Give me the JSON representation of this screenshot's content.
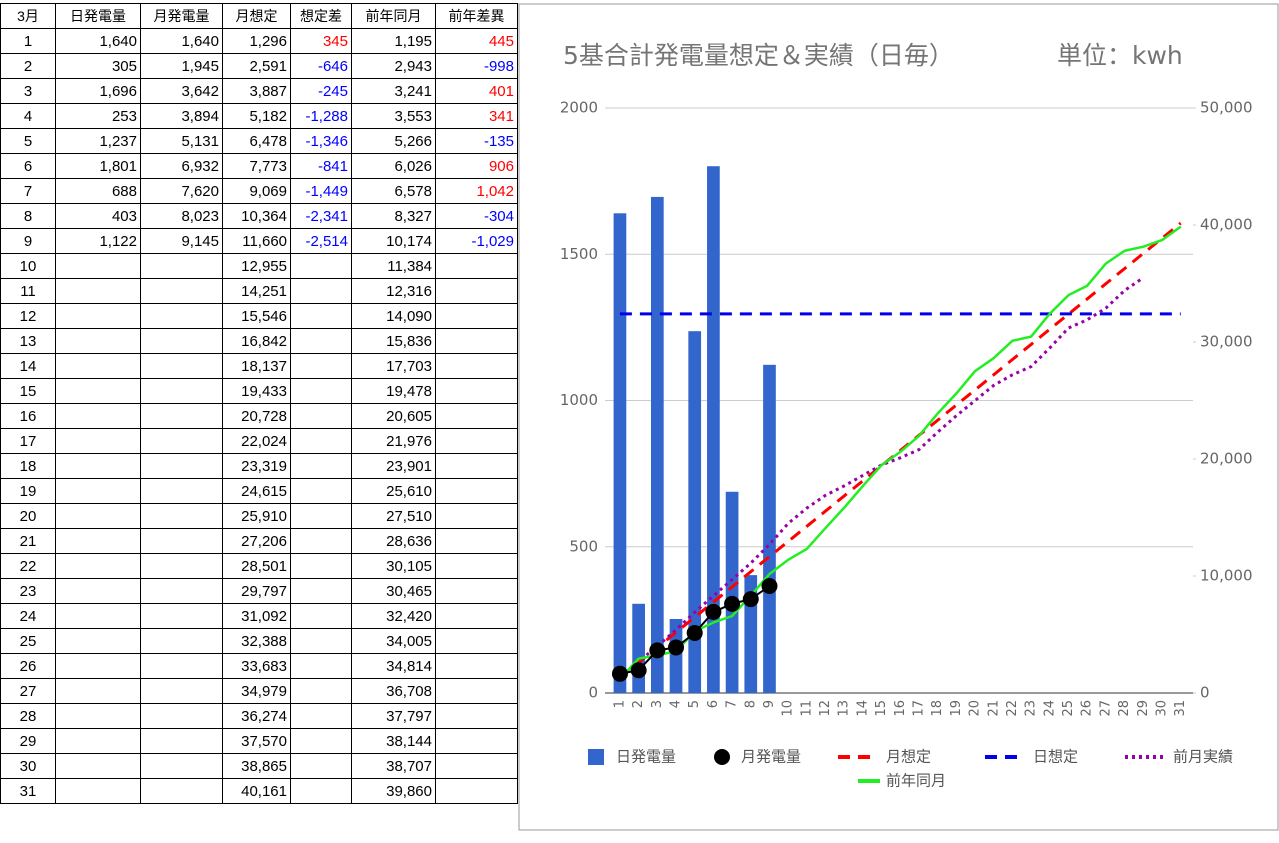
{
  "table": {
    "header": [
      "3月",
      "日発電量",
      "月発電量",
      "月想定",
      "想定差",
      "前年同月",
      "前年差異"
    ],
    "rows": [
      [
        "1",
        "1,640",
        "1,640",
        "1,296",
        "345",
        "1,195",
        "445"
      ],
      [
        "2",
        "305",
        "1,945",
        "2,591",
        "-646",
        "2,943",
        "-998"
      ],
      [
        "3",
        "1,696",
        "3,642",
        "3,887",
        "-245",
        "3,241",
        "401"
      ],
      [
        "4",
        "253",
        "3,894",
        "5,182",
        "-1,288",
        "3,553",
        "341"
      ],
      [
        "5",
        "1,237",
        "5,131",
        "6,478",
        "-1,346",
        "5,266",
        "-135"
      ],
      [
        "6",
        "1,801",
        "6,932",
        "7,773",
        "-841",
        "6,026",
        "906"
      ],
      [
        "7",
        "688",
        "7,620",
        "9,069",
        "-1,449",
        "6,578",
        "1,042"
      ],
      [
        "8",
        "403",
        "8,023",
        "10,364",
        "-2,341",
        "8,327",
        "-304"
      ],
      [
        "9",
        "1,122",
        "9,145",
        "11,660",
        "-2,514",
        "10,174",
        "-1,029"
      ],
      [
        "10",
        null,
        null,
        "12,955",
        null,
        "11,384",
        null
      ],
      [
        "11",
        null,
        null,
        "14,251",
        null,
        "12,316",
        null
      ],
      [
        "12",
        null,
        null,
        "15,546",
        null,
        "14,090",
        null
      ],
      [
        "13",
        null,
        null,
        "16,842",
        null,
        "15,836",
        null
      ],
      [
        "14",
        null,
        null,
        "18,137",
        null,
        "17,703",
        null
      ],
      [
        "15",
        null,
        null,
        "19,433",
        null,
        "19,478",
        null
      ],
      [
        "16",
        null,
        null,
        "20,728",
        null,
        "20,605",
        null
      ],
      [
        "17",
        null,
        null,
        "22,024",
        null,
        "21,976",
        null
      ],
      [
        "18",
        null,
        null,
        "23,319",
        null,
        "23,901",
        null
      ],
      [
        "19",
        null,
        null,
        "24,615",
        null,
        "25,610",
        null
      ],
      [
        "20",
        null,
        null,
        "25,910",
        null,
        "27,510",
        null
      ],
      [
        "21",
        null,
        null,
        "27,206",
        null,
        "28,636",
        null
      ],
      [
        "22",
        null,
        null,
        "28,501",
        null,
        "30,105",
        null
      ],
      [
        "23",
        null,
        null,
        "29,797",
        null,
        "30,465",
        null
      ],
      [
        "24",
        null,
        null,
        "31,092",
        null,
        "32,420",
        null
      ],
      [
        "25",
        null,
        null,
        "32,388",
        null,
        "34,005",
        null
      ],
      [
        "26",
        null,
        null,
        "33,683",
        null,
        "34,814",
        null
      ],
      [
        "27",
        null,
        null,
        "34,979",
        null,
        "36,708",
        null
      ],
      [
        "28",
        null,
        null,
        "36,274",
        null,
        "37,797",
        null
      ],
      [
        "29",
        null,
        null,
        "37,570",
        null,
        "38,144",
        null
      ],
      [
        "30",
        null,
        null,
        "38,865",
        null,
        "38,707",
        null
      ],
      [
        "31",
        null,
        null,
        "40,161",
        null,
        "39,860",
        null
      ]
    ],
    "positive_color": "#ff0000",
    "negative_color": "#0000ff"
  },
  "chart_data": {
    "type": "combo",
    "title": "5基合計発電量想定＆実績（日毎）",
    "unit_label": "単位：kwh",
    "categories": [
      "1",
      "2",
      "3",
      "4",
      "5",
      "6",
      "7",
      "8",
      "9",
      "10",
      "11",
      "12",
      "13",
      "14",
      "15",
      "16",
      "17",
      "18",
      "19",
      "20",
      "21",
      "22",
      "23",
      "24",
      "25",
      "26",
      "27",
      "28",
      "29",
      "30",
      "31"
    ],
    "ylim": [
      0,
      2000
    ],
    "yticks": [
      0,
      500,
      1000,
      1500,
      2000
    ],
    "y2lim": [
      0,
      50000
    ],
    "y2ticks": [
      0,
      {
        "value": 10000,
        "label": "10,000"
      },
      {
        "value": 20000,
        "label": "20,000"
      },
      {
        "value": 30000,
        "label": "30,000"
      },
      {
        "value": 40000,
        "label": "40,000"
      },
      {
        "value": 50000,
        "label": "50,000"
      }
    ],
    "grid": true,
    "series": [
      {
        "name": "日発電量",
        "kind": "bar",
        "axis": "y",
        "color": "#3366cc",
        "values": [
          1640,
          305,
          1696,
          253,
          1237,
          1801,
          688,
          403,
          1122,
          null,
          null,
          null,
          null,
          null,
          null,
          null,
          null,
          null,
          null,
          null,
          null,
          null,
          null,
          null,
          null,
          null,
          null,
          null,
          null,
          null,
          null
        ]
      },
      {
        "name": "月発電量",
        "kind": "markers",
        "axis": "y2",
        "color": "#000000",
        "values": [
          1640,
          1945,
          3642,
          3894,
          5131,
          6932,
          7620,
          8023,
          9145,
          null,
          null,
          null,
          null,
          null,
          null,
          null,
          null,
          null,
          null,
          null,
          null,
          null,
          null,
          null,
          null,
          null,
          null,
          null,
          null,
          null,
          null
        ]
      },
      {
        "name": "月想定",
        "kind": "dashed",
        "axis": "y2",
        "color": "#ff0000",
        "values": [
          1296,
          2591,
          3887,
          5182,
          6478,
          7773,
          9069,
          10364,
          11660,
          12955,
          14251,
          15546,
          16842,
          18137,
          19433,
          20728,
          22024,
          23319,
          24615,
          25910,
          27206,
          28501,
          29797,
          31092,
          32388,
          33683,
          34979,
          36274,
          37570,
          38865,
          40161
        ]
      },
      {
        "name": "日想定",
        "kind": "dashed",
        "axis": "y",
        "color": "#0000ee",
        "values": [
          1296,
          1296,
          1296,
          1296,
          1296,
          1296,
          1296,
          1296,
          1296,
          1296,
          1296,
          1296,
          1296,
          1296,
          1296,
          1296,
          1296,
          1296,
          1296,
          1296,
          1296,
          1296,
          1296,
          1296,
          1296,
          1296,
          1296,
          1296,
          1296,
          1296,
          1296
        ]
      },
      {
        "name": "前月実績",
        "kind": "dotted",
        "axis": "y2",
        "color": "#9900aa",
        "values": [
          1300,
          2700,
          4000,
          5400,
          6900,
          8300,
          9700,
          11100,
          12700,
          14500,
          15800,
          16900,
          17700,
          18600,
          19500,
          20100,
          20800,
          22300,
          23700,
          25000,
          26300,
          27200,
          27900,
          29500,
          31200,
          31900,
          32900,
          34400,
          35500,
          null,
          null
        ]
      },
      {
        "name": "前年同月",
        "kind": "solid",
        "axis": "y2",
        "color": "#22ee22",
        "values": [
          1195,
          2943,
          3241,
          3553,
          5266,
          6026,
          6578,
          8327,
          10174,
          11384,
          12316,
          14090,
          15836,
          17703,
          19478,
          20605,
          21976,
          23901,
          25610,
          27510,
          28636,
          30105,
          30465,
          32420,
          34005,
          34814,
          36708,
          37797,
          38144,
          38707,
          39860
        ]
      }
    ]
  }
}
